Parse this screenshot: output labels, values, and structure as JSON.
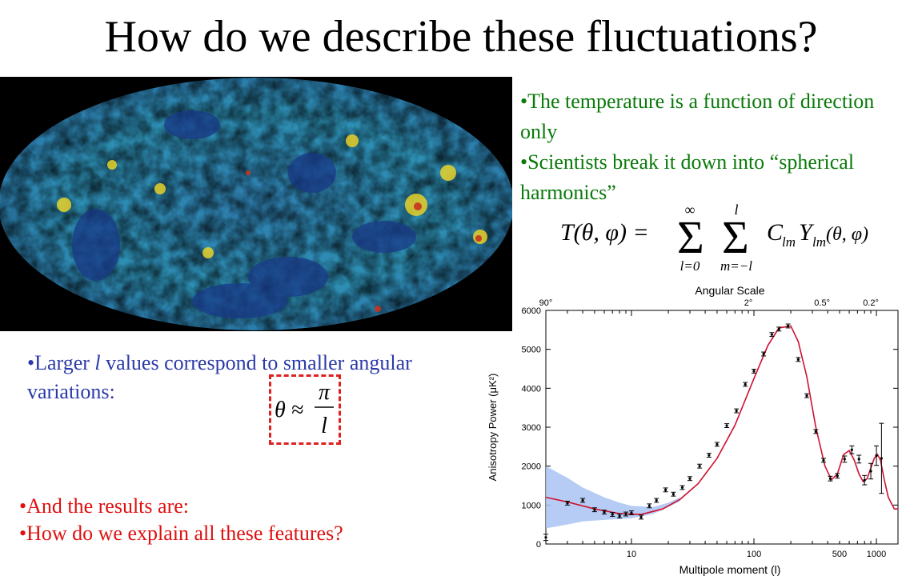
{
  "slide": {
    "title": "How do we describe these fluctuations?",
    "green_bullets": [
      "•The temperature is a function of direction only",
      "•Scientists break it down into “spherical harmonics”"
    ],
    "formula": {
      "lhs": "T(θ, φ) =",
      "sum1_top": "∞",
      "sum1_bottom": "l=0",
      "sum2_top": "l",
      "sum2_bottom": "m=−l",
      "rhs": "C",
      "rhs_sub": "lm",
      "y": "Y",
      "y_sub": "lm",
      "args": "(θ, φ)"
    },
    "blue_note_prefix": "•Larger ",
    "blue_note_var": "l",
    "blue_note_suffix": " values correspond to smaller angular variations:",
    "approx_formula": {
      "theta": "θ ≈",
      "numerator": "π",
      "denominator": "l"
    },
    "red_bullets": [
      "•And the results are:",
      "•How do we explain all these features?"
    ],
    "colors": {
      "green_text": "#0a7a0a",
      "blue_text": "#2b3aa8",
      "red_text": "#e01010",
      "model_curve": "#d01030",
      "variance_band": "#a9c3f2"
    }
  },
  "chart_data": {
    "type": "scatter",
    "title": "",
    "top_axis_title": "Angular Scale",
    "top_ticks": [
      "90°",
      "2°",
      "0.5°",
      "0.2°"
    ],
    "top_tick_l": [
      2,
      90,
      360,
      900
    ],
    "xlabel": "Multipole moment (l)",
    "ylabel": "Anisotropy Power (μK²)",
    "xscale": "log",
    "xlim": [
      2,
      1500
    ],
    "ylim": [
      0,
      6000
    ],
    "xticks": [
      10,
      100,
      500,
      1000
    ],
    "yticks": [
      0,
      1000,
      2000,
      3000,
      4000,
      5000,
      6000
    ],
    "series": [
      {
        "kind": "data_points_with_error_bars",
        "points": [
          {
            "l": 2,
            "y": 170,
            "err": 80
          },
          {
            "l": 3,
            "y": 1050,
            "err": 50
          },
          {
            "l": 4,
            "y": 1120,
            "err": 50
          },
          {
            "l": 5,
            "y": 880,
            "err": 50
          },
          {
            "l": 6,
            "y": 820,
            "err": 50
          },
          {
            "l": 7,
            "y": 760,
            "err": 50
          },
          {
            "l": 8,
            "y": 720,
            "err": 50
          },
          {
            "l": 9,
            "y": 770,
            "err": 50
          },
          {
            "l": 10,
            "y": 800,
            "err": 50
          },
          {
            "l": 12,
            "y": 690,
            "err": 50
          },
          {
            "l": 14,
            "y": 980,
            "err": 50
          },
          {
            "l": 16,
            "y": 1120,
            "err": 50
          },
          {
            "l": 19,
            "y": 1390,
            "err": 50
          },
          {
            "l": 22,
            "y": 1280,
            "err": 50
          },
          {
            "l": 26,
            "y": 1450,
            "err": 50
          },
          {
            "l": 30,
            "y": 1680,
            "err": 50
          },
          {
            "l": 36,
            "y": 2000,
            "err": 50
          },
          {
            "l": 43,
            "y": 2280,
            "err": 50
          },
          {
            "l": 50,
            "y": 2560,
            "err": 50
          },
          {
            "l": 60,
            "y": 3040,
            "err": 50
          },
          {
            "l": 72,
            "y": 3420,
            "err": 50
          },
          {
            "l": 85,
            "y": 4100,
            "err": 50
          },
          {
            "l": 100,
            "y": 4440,
            "err": 50
          },
          {
            "l": 120,
            "y": 4880,
            "err": 50
          },
          {
            "l": 140,
            "y": 5380,
            "err": 50
          },
          {
            "l": 160,
            "y": 5520,
            "err": 50
          },
          {
            "l": 190,
            "y": 5600,
            "err": 50
          },
          {
            "l": 230,
            "y": 4740,
            "err": 50
          },
          {
            "l": 270,
            "y": 3810,
            "err": 50
          },
          {
            "l": 320,
            "y": 2890,
            "err": 50
          },
          {
            "l": 370,
            "y": 2150,
            "err": 50
          },
          {
            "l": 420,
            "y": 1680,
            "err": 60
          },
          {
            "l": 480,
            "y": 1750,
            "err": 60
          },
          {
            "l": 550,
            "y": 2180,
            "err": 80
          },
          {
            "l": 630,
            "y": 2420,
            "err": 100
          },
          {
            "l": 720,
            "y": 2180,
            "err": 100
          },
          {
            "l": 800,
            "y": 1640,
            "err": 120
          },
          {
            "l": 900,
            "y": 1870,
            "err": 200
          },
          {
            "l": 1000,
            "y": 2270,
            "err": 250
          },
          {
            "l": 1100,
            "y": 2200,
            "err": 900
          }
        ]
      },
      {
        "kind": "model_curve",
        "x": [
          2,
          3,
          5,
          8,
          12,
          18,
          25,
          35,
          50,
          70,
          100,
          130,
          160,
          200,
          230,
          270,
          320,
          380,
          430,
          480,
          540,
          600,
          660,
          720,
          780,
          840,
          900,
          960,
          1020,
          1080,
          1150,
          1250,
          1400,
          1500
        ],
        "y": [
          1200,
          1080,
          900,
          780,
          760,
          900,
          1150,
          1550,
          2200,
          3050,
          4250,
          5100,
          5550,
          5600,
          5200,
          4300,
          3000,
          2000,
          1650,
          1800,
          2300,
          2400,
          2150,
          1800,
          1600,
          1680,
          1950,
          2200,
          2300,
          2150,
          1700,
          1200,
          900,
          900
        ]
      },
      {
        "kind": "cosmic_variance_band",
        "x": [
          2,
          3,
          4,
          6,
          8,
          10,
          15,
          20,
          25
        ],
        "upper": [
          2000,
          1700,
          1450,
          1200,
          1060,
          980,
          950,
          1060,
          1200
        ],
        "lower": [
          400,
          500,
          580,
          620,
          640,
          660,
          770,
          950,
          1100
        ]
      }
    ]
  }
}
